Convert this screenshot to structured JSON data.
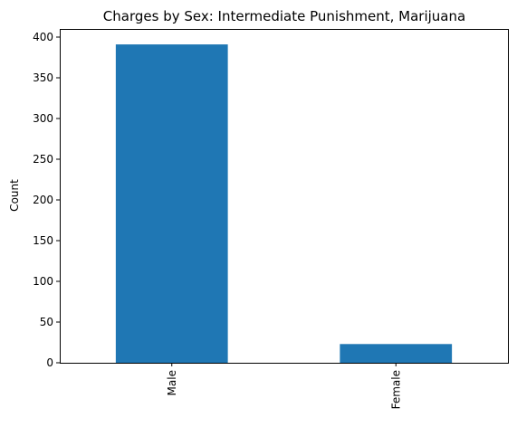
{
  "chart_data": {
    "type": "bar",
    "title": "Charges by Sex: Intermediate Punishment, Marijuana",
    "xlabel": "",
    "ylabel": "Count",
    "categories": [
      "Male",
      "Female"
    ],
    "values": [
      391,
      23
    ],
    "ylim": [
      0,
      410
    ],
    "yticks": [
      "0",
      "50",
      "100",
      "150",
      "200",
      "250",
      "300",
      "350",
      "400"
    ],
    "grid": false,
    "legend": "none",
    "bar_color": "#1f77b4",
    "x_tick_rotation": "vertical"
  }
}
